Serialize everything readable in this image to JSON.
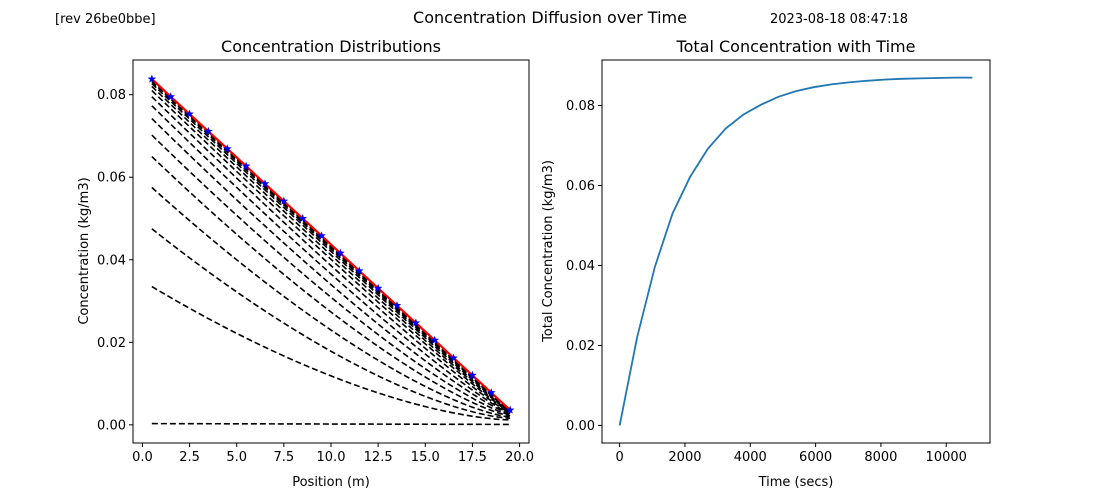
{
  "figure": {
    "suptitle": "Concentration Diffusion over Time",
    "rev_tag": "[rev 26be0bbe]",
    "timestamp": "2023-08-18 08:47:18"
  },
  "colors": {
    "profile_lines": "#000000",
    "steady_state_line": "#ff0000",
    "markers": "#0000ff",
    "total_line": "#1f77b4"
  },
  "chart_data": [
    {
      "type": "line",
      "title": "Concentration Distributions",
      "xlabel": "Position (m)",
      "ylabel": "Concentration (kg/m3)",
      "xlim": [
        -0.5,
        20.5
      ],
      "ylim": [
        -0.0044,
        0.0884
      ],
      "xticks": [
        0.0,
        2.5,
        5.0,
        7.5,
        10.0,
        12.5,
        15.0,
        17.5,
        20.0
      ],
      "xtick_labels": [
        "0.0",
        "2.5",
        "5.0",
        "7.5",
        "10.0",
        "12.5",
        "15.0",
        "17.5",
        "20.0"
      ],
      "yticks": [
        0.0,
        0.02,
        0.04,
        0.06,
        0.08
      ],
      "ytick_labels": [
        "0.00",
        "0.02",
        "0.04",
        "0.06",
        "0.08"
      ],
      "grid": false,
      "x": [
        0.5,
        1.5,
        2.5,
        3.5,
        4.5,
        5.5,
        6.5,
        7.5,
        8.5,
        9.5,
        10.5,
        11.5,
        12.5,
        13.5,
        14.5,
        15.5,
        16.5,
        17.5,
        18.5,
        19.5
      ],
      "profiles": {
        "line_style": "dashed",
        "x_start": 0.5,
        "x_end": 19.5,
        "start_values": [
          0.0003,
          0.0335,
          0.0475,
          0.0575,
          0.065,
          0.0702,
          0.0742,
          0.0773,
          0.0795,
          0.081,
          0.082,
          0.0827,
          0.0832,
          0.0835,
          0.0837
        ],
        "end_values": [
          0.0001,
          0.0012,
          0.0016,
          0.0019,
          0.0022,
          0.0024,
          0.0026,
          0.0027,
          0.0028,
          0.0029,
          0.003,
          0.003,
          0.0031,
          0.0031,
          0.0031
        ],
        "curvature_exponents": [
          1.0,
          1.6,
          1.5,
          1.4,
          1.32,
          1.25,
          1.19,
          1.14,
          1.1,
          1.07,
          1.05,
          1.03,
          1.02,
          1.01,
          1.005
        ]
      },
      "steady_state": {
        "line_style": "solid",
        "marker": "star",
        "values": [
          0.0838,
          0.0795,
          0.0753,
          0.0711,
          0.0669,
          0.0627,
          0.0584,
          0.0542,
          0.05,
          0.0458,
          0.0416,
          0.0373,
          0.0331,
          0.0289,
          0.0247,
          0.0205,
          0.0162,
          0.012,
          0.0078,
          0.0036
        ]
      }
    },
    {
      "type": "line",
      "title": "Total Concentration with Time",
      "xlabel": "Time (secs)",
      "ylabel": "Total Concentration (kg/m3)",
      "xlim": [
        -540,
        11340
      ],
      "ylim": [
        -0.0044,
        0.0914
      ],
      "xticks": [
        0,
        2000,
        4000,
        6000,
        8000,
        10000
      ],
      "xtick_labels": [
        "0",
        "2000",
        "4000",
        "6000",
        "8000",
        "10000"
      ],
      "yticks": [
        0.0,
        0.02,
        0.04,
        0.06,
        0.08
      ],
      "ytick_labels": [
        "0.00",
        "0.02",
        "0.04",
        "0.06",
        "0.08"
      ],
      "grid": false,
      "x": [
        0,
        540,
        1080,
        1620,
        2160,
        2700,
        3240,
        3780,
        4320,
        4860,
        5400,
        5940,
        6480,
        7020,
        7560,
        8100,
        8640,
        9180,
        9720,
        10260,
        10800
      ],
      "y": [
        0.0,
        0.0222,
        0.0397,
        0.053,
        0.0622,
        0.0692,
        0.0742,
        0.0777,
        0.0802,
        0.0822,
        0.0836,
        0.0846,
        0.0853,
        0.0858,
        0.0862,
        0.0865,
        0.0867,
        0.0868,
        0.0869,
        0.087,
        0.087
      ]
    }
  ]
}
